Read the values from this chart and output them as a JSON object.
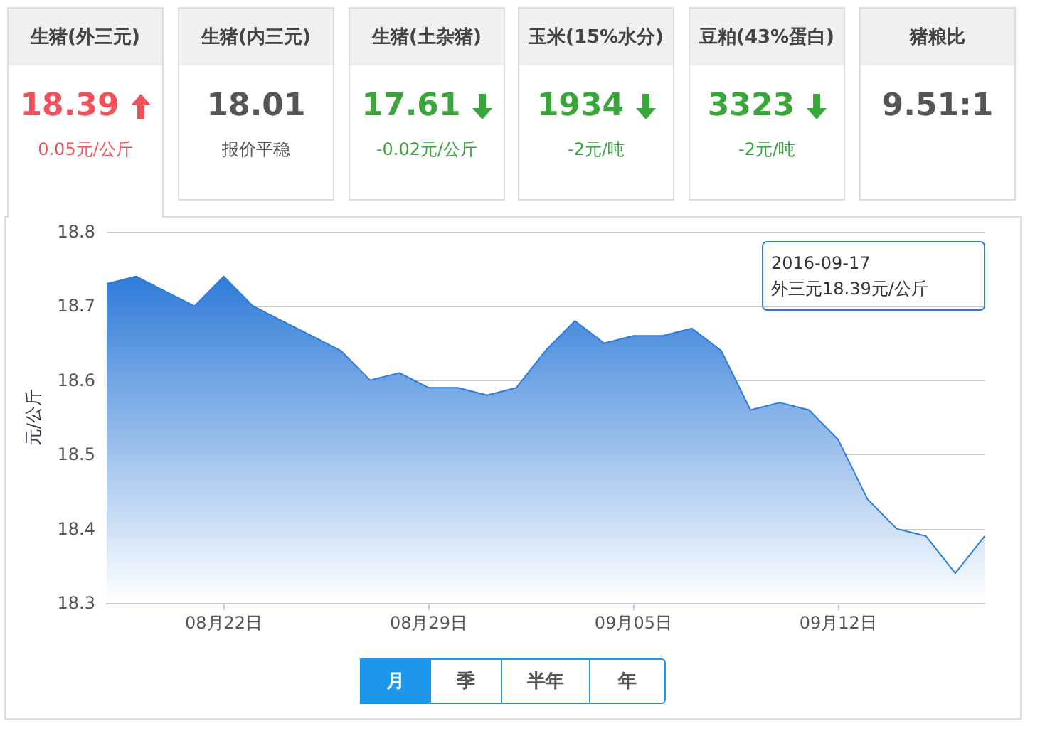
{
  "chart_data": [
    {
      "type": "other",
      "title": "生猪(外三元)",
      "annotations": [
        "18.39",
        "0.05元/公斤"
      ],
      "color": "#f0525b"
    },
    {
      "type": "other",
      "title": "生猪(内三元)",
      "annotations": [
        "18.01",
        "报价平稳"
      ],
      "color": "#555555"
    },
    {
      "type": "other",
      "title": "生猪(土杂猪)",
      "annotations": [
        "17.61",
        "-0.02元/公斤"
      ],
      "color": "#3aa53a"
    },
    {
      "type": "other",
      "title": "玉米(15%水分)",
      "annotations": [
        "1934",
        "-2元/吨"
      ],
      "color": "#3aa53a"
    },
    {
      "type": "other",
      "title": "豆粕(43%蛋白)",
      "annotations": [
        "3323",
        "-2元/吨"
      ],
      "color": "#3aa53a"
    },
    {
      "type": "other",
      "title": "猪粮比",
      "annotations": [
        "9.51:1"
      ],
      "color": "#555555"
    },
    {
      "type": "area",
      "ylabel": "元/公斤",
      "x": [
        "2016-08-18",
        "2016-08-19",
        "2016-08-20",
        "2016-08-21",
        "2016-08-22",
        "2016-08-23",
        "2016-08-24",
        "2016-08-25",
        "2016-08-26",
        "2016-08-27",
        "2016-08-28",
        "2016-08-29",
        "2016-08-30",
        "2016-08-31",
        "2016-09-01",
        "2016-09-02",
        "2016-09-03",
        "2016-09-04",
        "2016-09-05",
        "2016-09-06",
        "2016-09-07",
        "2016-09-08",
        "2016-09-09",
        "2016-09-10",
        "2016-09-11",
        "2016-09-12",
        "2016-09-13",
        "2016-09-14",
        "2016-09-15",
        "2016-09-16",
        "2016-09-17"
      ],
      "series": [
        {
          "color": "#2f7bd8",
          "values": [
            18.73,
            18.74,
            18.72,
            18.7,
            18.74,
            18.7,
            18.68,
            18.66,
            18.64,
            18.6,
            18.61,
            18.59,
            18.59,
            18.58,
            18.59,
            18.64,
            18.68,
            18.65,
            18.66,
            18.66,
            18.67,
            18.64,
            18.56,
            18.57,
            18.56,
            18.52,
            18.44,
            18.4,
            18.39,
            18.34,
            18.39
          ]
        }
      ],
      "xlim": [
        "2016-08-18",
        "2016-09-17"
      ],
      "xticks": [
        {
          "value": "2016-08-22",
          "label": "08月22日"
        },
        {
          "value": "2016-08-29",
          "label": "08月29日"
        },
        {
          "value": "2016-09-05",
          "label": "09月05日"
        },
        {
          "value": "2016-09-12",
          "label": "09月12日"
        }
      ],
      "ylim": [
        18.3,
        18.8
      ],
      "yticks": [
        18.3,
        18.4,
        18.5,
        18.6,
        18.7,
        18.8
      ],
      "grid": "y",
      "marker": "none",
      "annotations": [
        "2016-09-17\n外三元18.39元/公斤",
        "月",
        "季",
        "半年",
        "年"
      ]
    }
  ]
}
